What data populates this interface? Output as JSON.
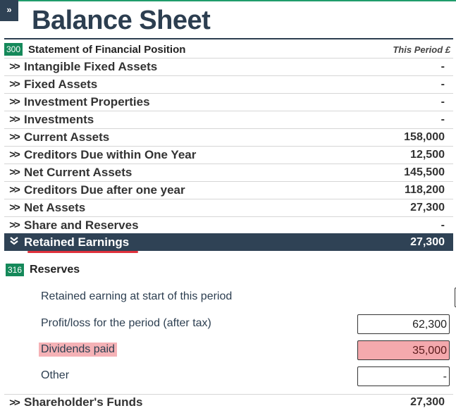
{
  "expand_glyph": "»",
  "title": "Balance Sheet",
  "statement": {
    "code": "300",
    "label": "Statement of Financial Position",
    "period_header": "This Period £"
  },
  "rows": [
    {
      "label": "Intangible Fixed Assets",
      "value": "-"
    },
    {
      "label": "Fixed Assets",
      "value": "-"
    },
    {
      "label": "Investment Properties",
      "value": "-"
    },
    {
      "label": "Investments",
      "value": "-"
    },
    {
      "label": "Current Assets",
      "value": "158,000"
    },
    {
      "label": "Creditors Due within One Year",
      "value": "12,500"
    },
    {
      "label": "Net Current Assets",
      "value": "145,500"
    },
    {
      "label": "Creditors Due after one year",
      "value": "118,200"
    },
    {
      "label": "Net Assets",
      "value": "27,300"
    },
    {
      "label": "Share and Reserves",
      "value": "-"
    }
  ],
  "selected_row": {
    "label": "Retained Earnings",
    "value": "27,300"
  },
  "reserves": {
    "code": "316",
    "label": "Reserves",
    "fields": [
      {
        "label": "Retained earning at start of this period",
        "value": ""
      },
      {
        "label": "Profit/loss for the period (after tax)",
        "value": "62,300"
      },
      {
        "label": "Dividends paid",
        "value": "35,000"
      },
      {
        "label": "Other",
        "value": "-"
      }
    ]
  },
  "footer_row": {
    "label": "Shareholder's Funds",
    "value": "27,300"
  },
  "colors": {
    "header_dark": "#2f4255",
    "code_badge": "#15895a",
    "highlight_pink": "#f4a9ad",
    "underline_red": "#e0313d"
  }
}
